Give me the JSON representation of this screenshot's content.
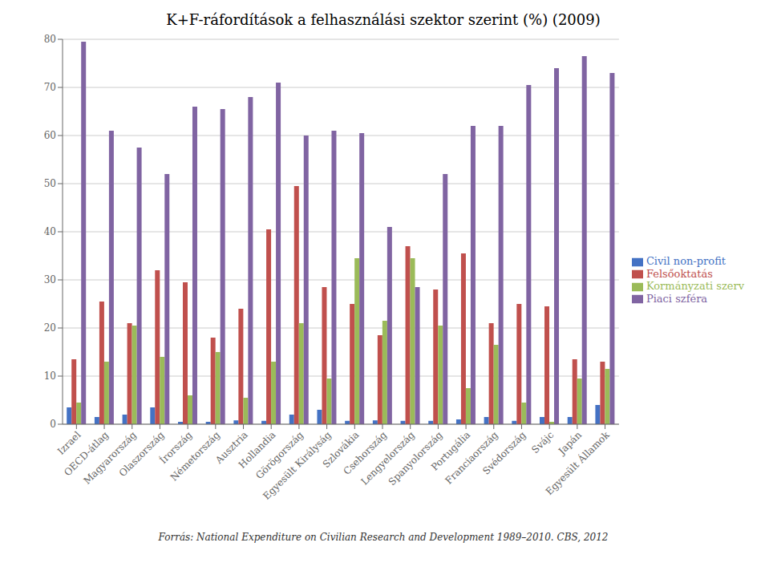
{
  "chart_data": {
    "type": "bar",
    "title": "K+F-ráfordítások a felhasználási szektor szerint  (%) (2009)",
    "annotations": [
      "Forrás: National Expenditure on Civilian Research and Development 1989–2010. CBS, 2012"
    ],
    "categories": [
      "Izrael",
      "OECD-átlag",
      "Magyarország",
      "Olaszország",
      "Írország",
      "Németország",
      "Ausztria",
      "Hollandia",
      "Görögország",
      "Egyesült Királyság",
      "Szlovákia",
      "Csehország",
      "Lengyelország",
      "Spanyolország",
      "Portugália",
      "Franciaország",
      "Svédország",
      "Svájc",
      "Japán",
      "Egyesült Államok"
    ],
    "series": [
      {
        "name": "Civil non-profit",
        "color": "#4472c4",
        "values": [
          3.5,
          1.5,
          2.0,
          3.5,
          0.5,
          0.5,
          0.8,
          0.7,
          2.0,
          3.0,
          0.7,
          0.8,
          0.7,
          0.7,
          1.0,
          1.5,
          0.7,
          1.5,
          1.5,
          4.0
        ]
      },
      {
        "name": "Felsőoktatás",
        "color": "#c0504d",
        "values": [
          13.5,
          25.5,
          21.0,
          32.0,
          29.5,
          18.0,
          24.0,
          40.5,
          49.5,
          28.5,
          25.0,
          18.5,
          37.0,
          28.0,
          35.5,
          21.0,
          25.0,
          24.5,
          13.5,
          13.0
        ]
      },
      {
        "name": "Kormányzati szerv",
        "color": "#9bbb59",
        "values": [
          4.5,
          13.0,
          20.5,
          14.0,
          6.0,
          15.0,
          5.5,
          13.0,
          21.0,
          9.5,
          34.5,
          21.5,
          34.5,
          20.5,
          7.5,
          16.5,
          4.5,
          0.5,
          9.5,
          11.5
        ]
      },
      {
        "name": "Piaci szféra",
        "color": "#8064a2",
        "values": [
          79.5,
          61.0,
          57.5,
          52.0,
          66.0,
          65.5,
          68.0,
          71.0,
          60.0,
          61.0,
          60.5,
          41.0,
          28.5,
          52.0,
          62.0,
          62.0,
          70.5,
          74.0,
          76.5,
          73.0
        ]
      }
    ],
    "ylim": [
      0,
      80
    ],
    "yticks": [
      0,
      10,
      20,
      30,
      40,
      50,
      60,
      70,
      80
    ],
    "grid": true,
    "legend": "right"
  }
}
